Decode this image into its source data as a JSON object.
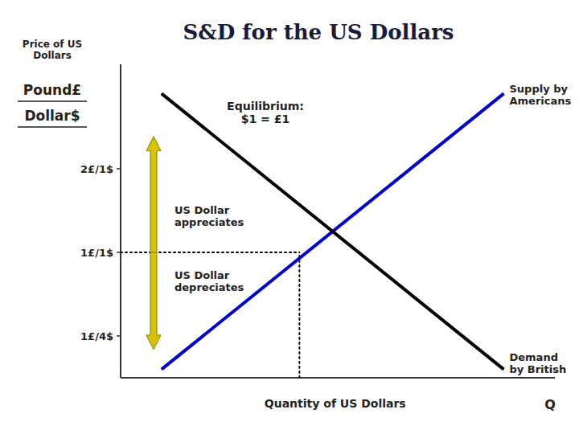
{
  "chart_data": {
    "type": "line",
    "title": "S&D for the US Dollars",
    "xlabel": "Quantity of US Dollars",
    "ylabel": "Price of US\nDollars",
    "annotations": [
      "Pound£",
      "Dollar$",
      "Q",
      "Equilibrium:\n$1 = £1",
      "US Dollar\nappreciates",
      "US Dollar\ndepreciates"
    ],
    "series": [
      {
        "name": "Supply by\nAmericans",
        "color": "#0000CC",
        "x": [
          1.8,
          8.5
        ],
        "values": [
          0.2,
          6.8
        ]
      },
      {
        "name": "Demand\nby British",
        "color": "#000000",
        "x": [
          1.8,
          8.5
        ],
        "values": [
          6.8,
          0.2
        ]
      }
    ],
    "equilibrium": {
      "x": 4.5,
      "y": 3.0
    },
    "xlim": [
      1.0,
      9.5
    ],
    "ylim": [
      0.0,
      7.5
    ],
    "yticks": [
      {
        "value": 1.0,
        "label": "1£/4$"
      },
      {
        "value": 3.0,
        "label": "1£/1$"
      },
      {
        "value": 5.0,
        "label": "2£/1$"
      }
    ],
    "tick_labels": "y",
    "grid": false
  }
}
